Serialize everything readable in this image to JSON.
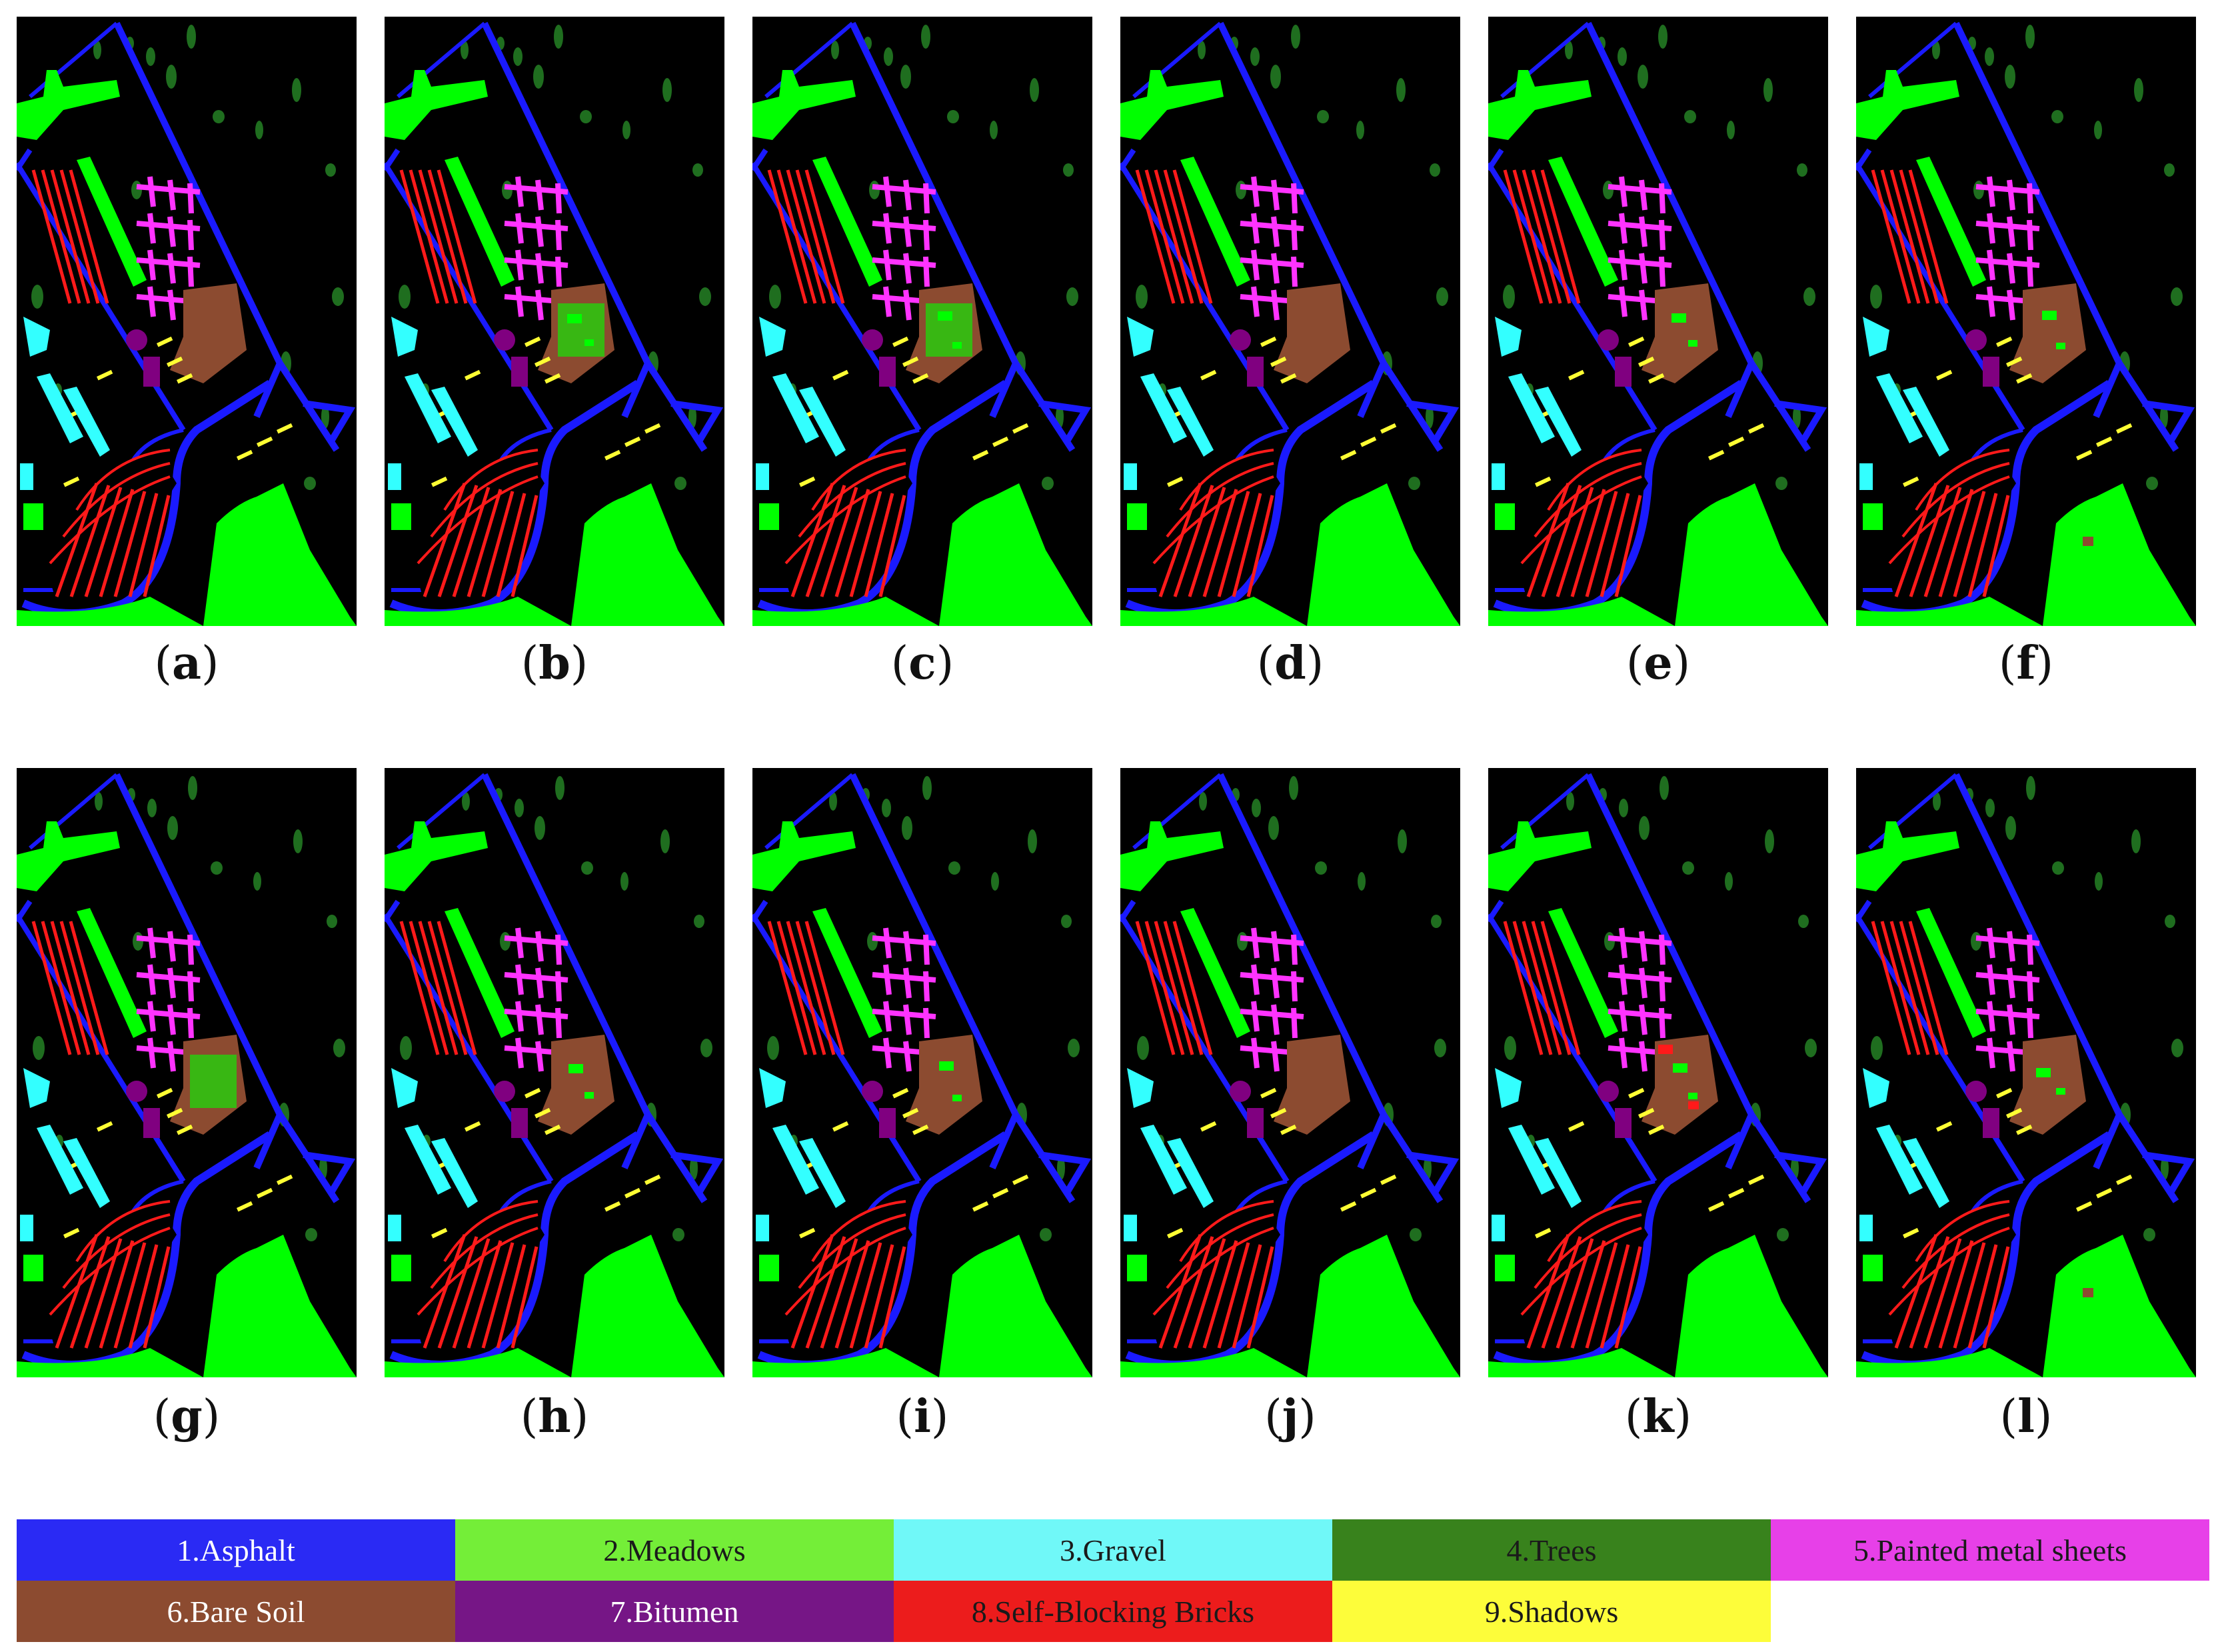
{
  "panels": [
    {
      "label": "a"
    },
    {
      "label": "b"
    },
    {
      "label": "c"
    },
    {
      "label": "d"
    },
    {
      "label": "e"
    },
    {
      "label": "f"
    },
    {
      "label": "g"
    },
    {
      "label": "h"
    },
    {
      "label": "i"
    },
    {
      "label": "j"
    },
    {
      "label": "k"
    },
    {
      "label": "l"
    }
  ],
  "legend": [
    {
      "text": "1.Asphalt",
      "bg": "#2a2af4",
      "fg": "#ffffff"
    },
    {
      "text": "2.Meadows",
      "bg": "#74ee38",
      "fg": "#1a1a1a"
    },
    {
      "text": "3.Gravel",
      "bg": "#70f8f8",
      "fg": "#1a1a1a"
    },
    {
      "text": "4.Trees",
      "bg": "#38821c",
      "fg": "#1a1a1a"
    },
    {
      "text": "5.Painted metal sheets",
      "bg": "#e740e8",
      "fg": "#1a1a1a"
    },
    {
      "text": "6.Bare Soil",
      "bg": "#8c4b30",
      "fg": "#ffffff"
    },
    {
      "text": "7.Bitumen",
      "bg": "#761686",
      "fg": "#ffffff"
    },
    {
      "text": "8.Self-Blocking Bricks",
      "bg": "#ec1c1c",
      "fg": "#1a1a1a"
    },
    {
      "text": "9.Shadows",
      "bg": "#fdfd3a",
      "fg": "#1a1a1a"
    }
  ],
  "class_colors": {
    "asphalt": "#1a1aff",
    "meadows": "#00ff00",
    "gravel": "#33ffff",
    "trees": "#1f6e1f",
    "metal": "#ff33ff",
    "soil": "#8c4b30",
    "bitumen": "#800080",
    "bricks": "#ff1a1a",
    "shadows": "#ffff33"
  }
}
